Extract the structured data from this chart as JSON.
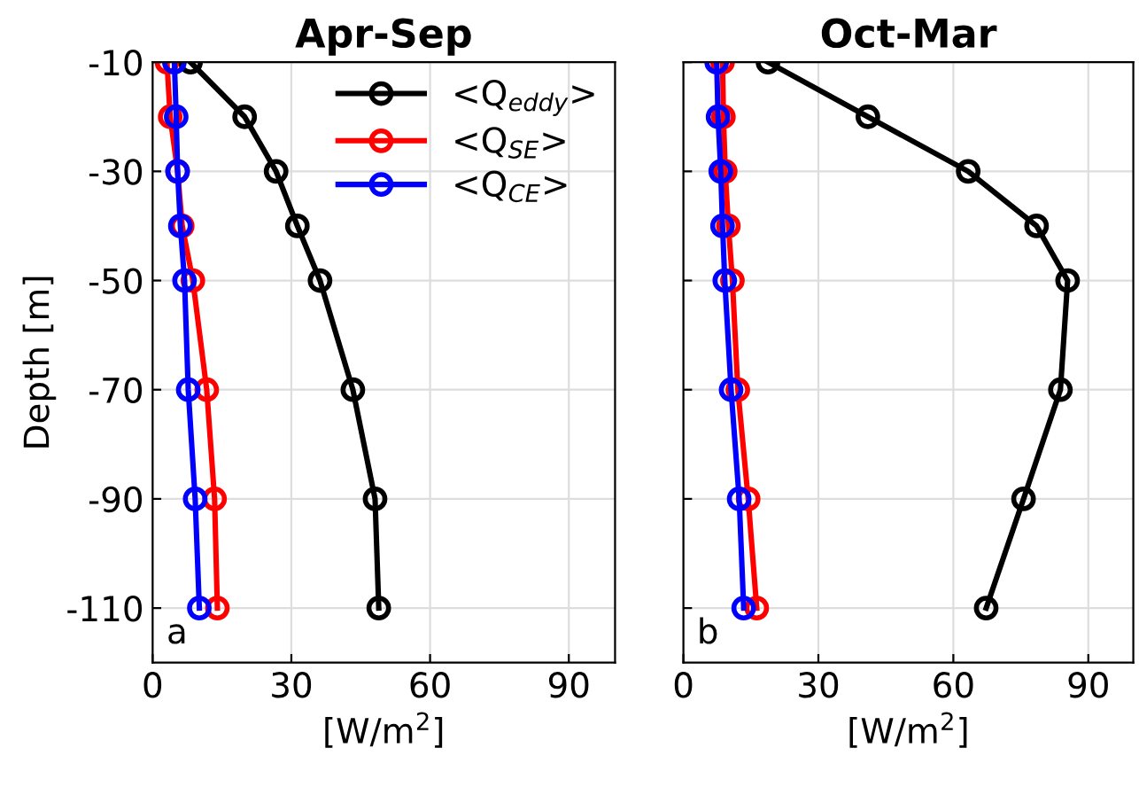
{
  "chart_data": [
    {
      "type": "line",
      "title": "Apr-Sep",
      "xlabel": "[W/m$^{2}$]",
      "ylabel": "Depth [m]",
      "annotations": [
        "a"
      ],
      "x": [
        -10,
        -20,
        -30,
        -40,
        -50,
        -70,
        -90,
        -110
      ],
      "series": [
        {
          "name": "<Q$_{eddy}$>",
          "color": "#000000",
          "values": [
            8.2,
            19.9,
            26.7,
            31.3,
            36.2,
            43.3,
            48.1,
            48.9
          ]
        },
        {
          "name": "<Q$_{SE}$>",
          "color": "#ff0000",
          "values": [
            3.1,
            3.8,
            5.4,
            6.4,
            8.7,
            11.7,
            13.4,
            14.0
          ]
        },
        {
          "name": "<Q$_{CE}$>",
          "color": "#0000ff",
          "values": [
            4.7,
            5.1,
            5.4,
            6.0,
            6.9,
            7.7,
            9.2,
            10.1
          ]
        }
      ],
      "xlim": [
        0,
        100
      ],
      "xticks": [
        0,
        30,
        60,
        90
      ],
      "ylim": [
        -120,
        -10
      ],
      "yticks": [
        -10,
        -30,
        -50,
        -70,
        -90,
        -110
      ],
      "grid": true,
      "legend": "top right",
      "marker": "circle",
      "line_style": "solid",
      "orientation": "horizontal"
    },
    {
      "type": "line",
      "title": "Oct-Mar",
      "xlabel": "[W/m$^{2}$]",
      "annotations": [
        "b"
      ],
      "x": [
        -10,
        -20,
        -30,
        -40,
        -50,
        -70,
        -90,
        -110
      ],
      "series": [
        {
          "color": "#000000",
          "values": [
            18.8,
            41.0,
            63.3,
            78.5,
            85.4,
            83.8,
            75.6,
            67.3
          ]
        },
        {
          "color": "#ff0000",
          "values": [
            8.7,
            8.9,
            9.3,
            10.0,
            10.9,
            12.1,
            14.4,
            16.3
          ]
        },
        {
          "color": "#0000ff",
          "values": [
            7.4,
            7.7,
            8.3,
            8.7,
            9.2,
            10.6,
            12.4,
            13.4
          ]
        }
      ],
      "xlim": [
        0,
        100
      ],
      "xticks": [
        0,
        30,
        60,
        90
      ],
      "ylim": [
        -120,
        -10
      ],
      "yticks": [
        -10,
        -30,
        -50,
        -70,
        -90,
        -110
      ],
      "grid": true,
      "tick_labels": "x",
      "marker": "circle",
      "line_style": "solid",
      "orientation": "horizontal"
    }
  ]
}
